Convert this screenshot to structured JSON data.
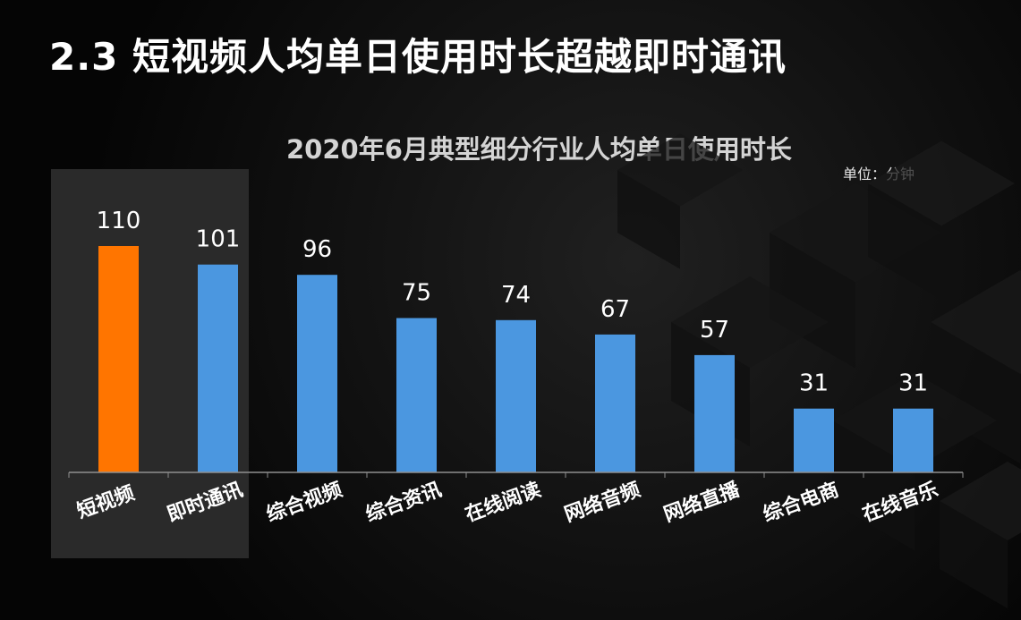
{
  "slide_title": "2.3 短视频人均单日使用时长超越即时通讯",
  "colors": {
    "accent": "#ff7500",
    "bar": "#4b97e0",
    "highlight_box": "#2a2a2a",
    "axis": "#8f8f8f",
    "text": "#ffffff"
  },
  "chart_data": {
    "type": "bar",
    "title": "2020年6月典型细分行业人均单日使用时长",
    "unit_label": "单位：分钟",
    "categories": [
      "短视频",
      "即时通讯",
      "综合视频",
      "综合资讯",
      "在线阅读",
      "网络音频",
      "网络直播",
      "综合电商",
      "在线音乐"
    ],
    "values": [
      110,
      101,
      96,
      75,
      74,
      67,
      57,
      31,
      31
    ],
    "ylim": [
      0,
      120
    ],
    "highlight_index": 0,
    "highlight_group": [
      0,
      1
    ],
    "grid": false,
    "legend": "none"
  }
}
